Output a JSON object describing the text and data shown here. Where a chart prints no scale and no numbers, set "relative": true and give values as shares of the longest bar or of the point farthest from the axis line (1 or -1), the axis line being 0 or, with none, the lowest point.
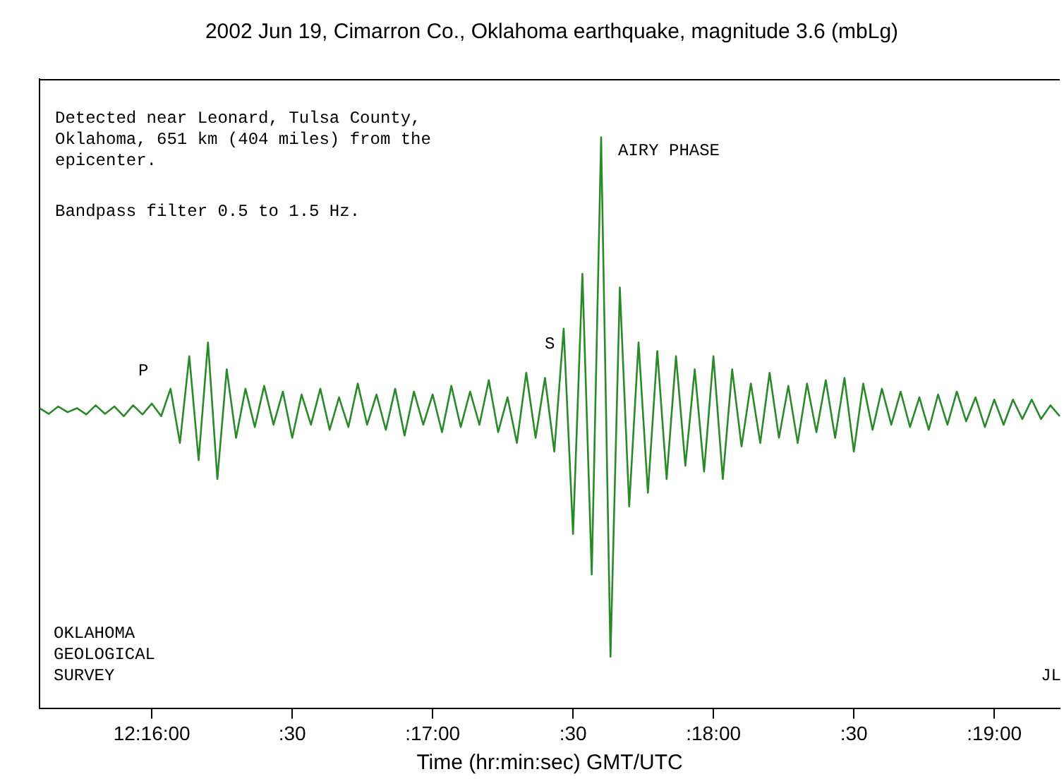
{
  "chart_data": {
    "type": "line",
    "title": "2002 Jun 19, Cimarron Co., Oklahoma earthquake, magnitude 3.6 (mbLg)",
    "xlabel": "Time (hr:min:sec) GMT/UTC",
    "relative": true,
    "tick_labels": "x",
    "marker": "none",
    "line_style": "solid",
    "categories": [
      null,
      null,
      null,
      null,
      null,
      null,
      null,
      null,
      null,
      null,
      null,
      null,
      "12:16:00",
      null,
      null,
      null,
      null,
      null,
      null,
      null,
      null,
      null,
      null,
      null,
      null,
      null,
      null,
      ":30",
      null,
      null,
      null,
      null,
      null,
      null,
      null,
      null,
      null,
      null,
      null,
      null,
      null,
      null,
      ":17:00",
      null,
      null,
      null,
      null,
      null,
      null,
      null,
      null,
      null,
      null,
      null,
      null,
      null,
      null,
      ":30",
      null,
      null,
      null,
      null,
      null,
      null,
      null,
      null,
      null,
      null,
      null,
      null,
      null,
      null,
      ":18:00",
      null,
      null,
      null,
      null,
      null,
      null,
      null,
      null,
      null,
      null,
      null,
      null,
      null,
      null,
      ":30",
      null,
      null,
      null,
      null,
      null,
      null,
      null,
      null,
      null,
      null,
      null,
      null,
      null,
      null,
      ":19:00",
      null,
      null,
      null,
      null,
      null,
      null,
      null
    ],
    "series": [
      {
        "color": "#2a8a2a",
        "values": [
          0.526,
          0.516,
          0.529,
          0.519,
          0.526,
          0.515,
          0.531,
          0.516,
          0.529,
          0.512,
          0.531,
          0.515,
          0.534,
          0.512,
          0.56,
          0.465,
          0.617,
          0.435,
          0.641,
          0.402,
          0.594,
          0.474,
          0.56,
          0.493,
          0.565,
          0.497,
          0.555,
          0.474,
          0.55,
          0.497,
          0.56,
          0.488,
          0.545,
          0.493,
          0.569,
          0.497,
          0.55,
          0.488,
          0.56,
          0.478,
          0.555,
          0.497,
          0.55,
          0.484,
          0.565,
          0.493,
          0.555,
          0.497,
          0.575,
          0.484,
          0.545,
          0.465,
          0.588,
          0.474,
          0.579,
          0.45,
          0.665,
          0.306,
          0.761,
          0.235,
          1,
          0.091,
          0.737,
          0.354,
          0.641,
          0.378,
          0.626,
          0.402,
          0.617,
          0.425,
          0.594,
          0.415,
          0.617,
          0.402,
          0.594,
          0.459,
          0.569,
          0.465,
          0.588,
          0.474,
          0.565,
          0.465,
          0.569,
          0.484,
          0.575,
          0.474,
          0.579,
          0.45,
          0.569,
          0.488,
          0.56,
          0.497,
          0.555,
          0.493,
          0.545,
          0.488,
          0.55,
          0.497,
          0.555,
          0.503,
          0.545,
          0.493,
          0.541,
          0.497,
          0.541,
          0.507,
          0.541,
          0.507,
          0.531,
          0.512
        ]
      }
    ],
    "annotations": [
      "Detected near Leonard, Tulsa County,\nOklahoma, 651 km (404 miles) from the\nepicenter.",
      "Bandpass filter 0.5 to 1.5 Hz.",
      "P",
      "S",
      "AIRY PHASE",
      "OKLAHOMA\nGEOLOGICAL\nSURVEY",
      "JL"
    ]
  }
}
